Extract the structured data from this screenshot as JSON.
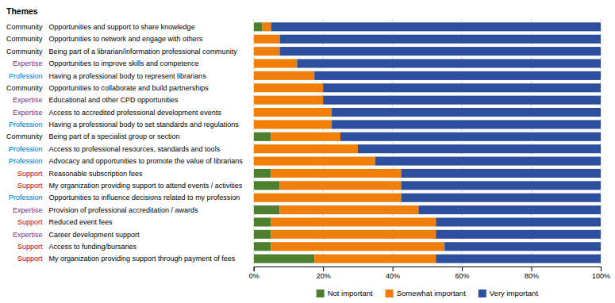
{
  "chart_data": {
    "type": "bar",
    "orientation": "horizontal",
    "stacked": true,
    "categories": [
      "Opportunities and support to share knowledge",
      "Opportunities to network and engage with others",
      "Being part of a librarian/information professional community",
      "Opportunities to improve skills and competence",
      "Having a professional body to represent librarians",
      "Opportunities to collaborate and build partnerships",
      "Educational and other CPD opportunities",
      "Access to accredited professional development events",
      "Having a professional body to set standards and regulations",
      "Being part of a specialist group or section",
      "Access to professional resources, standards and tools",
      "Advocacy and opportunities to promote the value of librarians",
      "Reasonable subscription fees",
      "My organization providing support to attend events / activities",
      "Opportunities to influence decisions related to my profession",
      "Provision of professional accreditation / awards",
      "Reduced event fees",
      "Career development support",
      "Access to funding/bursaries",
      "My organization providing support through payment of fees"
    ],
    "category_groups": {
      "title": "Themes",
      "labels": [
        "Community",
        "Community",
        "Community",
        "Expertise",
        "Profession",
        "Community",
        "Expertise",
        "Expertise",
        "Profession",
        "Community",
        "Profession",
        "Profession",
        "Support",
        "Support",
        "Profession",
        "Expertise",
        "Support",
        "Expertise",
        "Support",
        "Support"
      ],
      "colors": [
        "#000000",
        "#000000",
        "#000000",
        "#7030a0",
        "#0070c0",
        "#000000",
        "#7030a0",
        "#7030a0",
        "#0070c0",
        "#000000",
        "#0070c0",
        "#0070c0",
        "#c00000",
        "#c00000",
        "#0070c0",
        "#7030a0",
        "#c00000",
        "#7030a0",
        "#c00000",
        "#c00000"
      ]
    },
    "series": [
      {
        "name": "Not important",
        "color": "#4e7f2e",
        "values": [
          2.5,
          0,
          0,
          0,
          0,
          0,
          0,
          0,
          0,
          5.0,
          0,
          0,
          5.0,
          7.5,
          0,
          7.5,
          5.0,
          5.0,
          5.0,
          17.5
        ]
      },
      {
        "name": "Somewhat important",
        "color": "#f07f0a",
        "values": [
          2.5,
          7.5,
          7.5,
          12.5,
          17.5,
          20.0,
          20.0,
          22.5,
          22.5,
          20.0,
          30.0,
          35.0,
          37.5,
          35.0,
          42.5,
          40.0,
          47.5,
          47.5,
          50.0,
          35.0
        ]
      },
      {
        "name": "Very important",
        "color": "#2e4f9e",
        "values": [
          95.0,
          92.5,
          92.5,
          87.5,
          82.5,
          80.0,
          80.0,
          77.5,
          77.5,
          75.0,
          70.0,
          65.0,
          57.5,
          57.5,
          57.5,
          52.5,
          47.5,
          47.5,
          45.0,
          47.5
        ]
      }
    ],
    "xlim": [
      0,
      100
    ],
    "xticks": [
      {
        "value": 0,
        "label": "0%"
      },
      {
        "value": 20,
        "label": "20%"
      },
      {
        "value": 40,
        "label": "40%"
      },
      {
        "value": 60,
        "label": "60%"
      },
      {
        "value": 80,
        "label": "80%"
      },
      {
        "value": 100,
        "label": "100%"
      }
    ],
    "grid": true,
    "legend": "bottom"
  }
}
